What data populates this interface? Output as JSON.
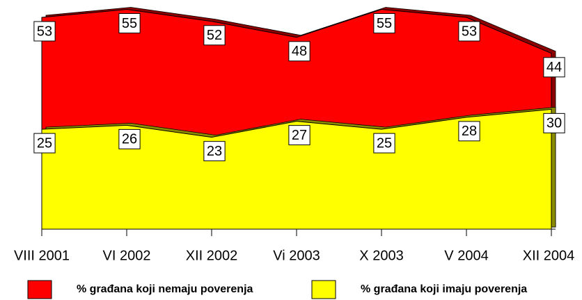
{
  "chart_data": {
    "type": "area",
    "categories": [
      "VIII 2001",
      "VI 2002",
      "XII 2002",
      "Vi 2003",
      "X 2003",
      "V 2004",
      "XII 2004"
    ],
    "series": [
      {
        "name": "% građana koji nemaju poverenja",
        "color": "#ff0000",
        "values": [
          53,
          55,
          52,
          48,
          55,
          53,
          44
        ]
      },
      {
        "name": "% građana koji imaju poverenja",
        "color": "#ffff00",
        "values": [
          25,
          26,
          23,
          27,
          25,
          28,
          30
        ]
      }
    ],
    "ylim": [
      0,
      57
    ]
  }
}
